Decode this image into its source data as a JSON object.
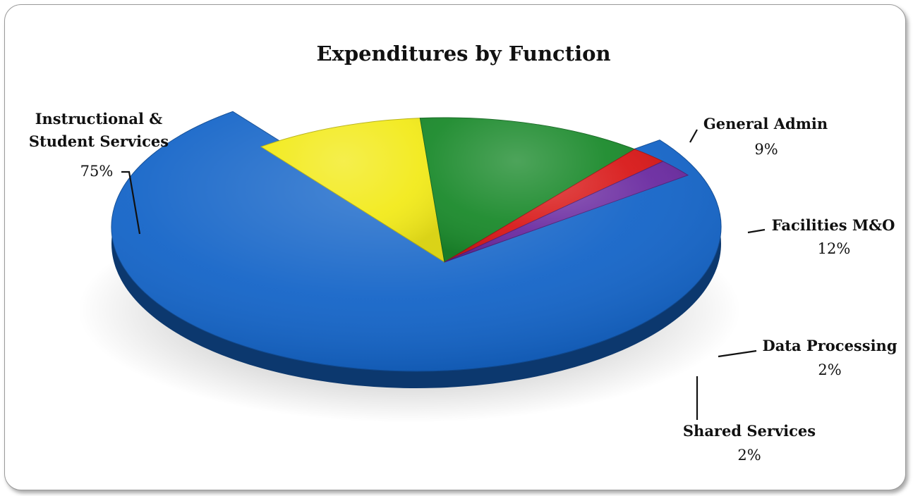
{
  "chart_data": {
    "type": "pie",
    "title": "Expenditures by Function",
    "slices": [
      {
        "label_lines": [
          "Instructional &",
          "Student Services"
        ],
        "value": 75,
        "pct_label": "75%",
        "color": "#1565c8"
      },
      {
        "label_lines": [
          "General Admin"
        ],
        "value": 9,
        "pct_label": "9%",
        "color": "#f2ea1a"
      },
      {
        "label_lines": [
          "Facilities M&O"
        ],
        "value": 12,
        "pct_label": "12%",
        "color": "#1b8a2c"
      },
      {
        "label_lines": [
          "Data Processing"
        ],
        "value": 2,
        "pct_label": "2%",
        "color": "#d81818"
      },
      {
        "label_lines": [
          "Shared Services"
        ],
        "value": 2,
        "pct_label": "2%",
        "color": "#6a2aa0"
      }
    ],
    "grid": false,
    "legend": "none"
  }
}
